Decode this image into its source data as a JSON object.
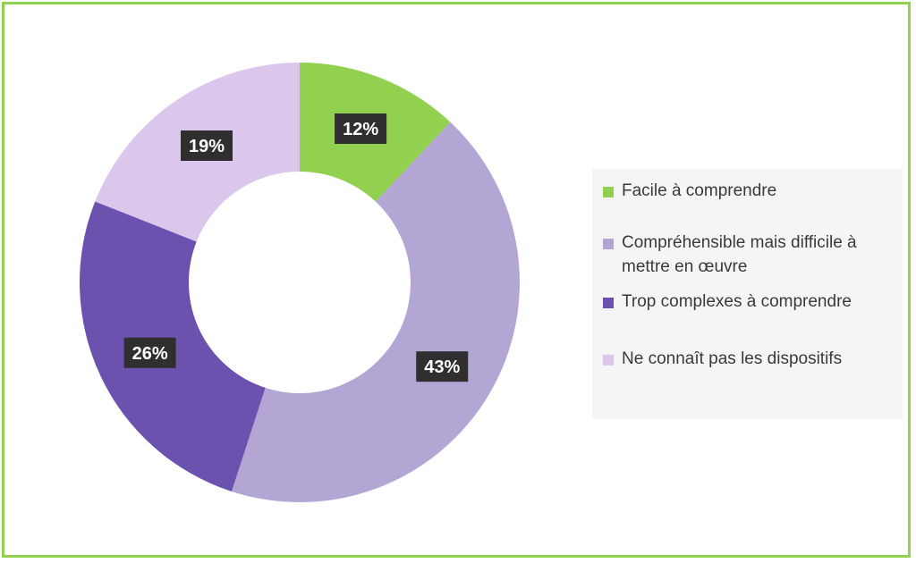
{
  "colors": {
    "frame": "#92d050",
    "label_bg": "#2f2f2f",
    "label_text": "#ffffff"
  },
  "chart_data": {
    "type": "pie",
    "donut": true,
    "title": "",
    "series": [
      {
        "values": [
          12,
          43,
          26,
          19
        ],
        "labels": [
          "12%",
          "43%",
          "26%",
          "19%"
        ]
      }
    ],
    "categories": [
      "Facile à comprendre",
      "Compréhensible mais difficile à mettre en œuvre",
      "Trop complexes à comprendre",
      "Ne connaît pas les dispositifs"
    ],
    "colors": [
      "#92d050",
      "#b3a6d5",
      "#6b52ae",
      "#dbc7ec"
    ],
    "legend_position": "right"
  }
}
